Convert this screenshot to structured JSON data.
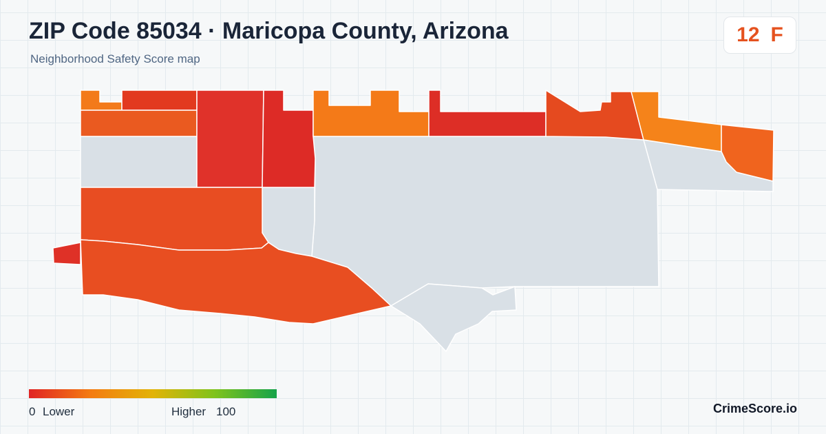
{
  "header": {
    "title": "ZIP Code 85034 · Maricopa County, Arizona",
    "subtitle": "Neighborhood Safety Score map"
  },
  "score": {
    "value": "12",
    "grade": "F",
    "color": "#e5521f"
  },
  "map": {
    "no_data_color": "#d9e0e6",
    "regions": [
      {
        "id": "nw-strip-1",
        "color": "#f37a1a"
      },
      {
        "id": "nw-strip-2",
        "color": "#e2391f"
      },
      {
        "id": "nw-block",
        "color": "#ea5a20"
      },
      {
        "id": "north-block-a",
        "color": "#e0322a"
      },
      {
        "id": "north-block-b",
        "color": "#dd2b26"
      },
      {
        "id": "north-center-left",
        "color": "#f47a18"
      },
      {
        "id": "north-center",
        "color": "#dd2e26"
      },
      {
        "id": "north-center-right",
        "color": "#e54a1f"
      },
      {
        "id": "ne-block",
        "color": "#f5831a"
      },
      {
        "id": "east-block",
        "color": "#f0641e"
      },
      {
        "id": "west-mid-block",
        "color": "#e84d22"
      },
      {
        "id": "sw-large",
        "color": "#e84e21"
      },
      {
        "id": "west-tip",
        "color": "#df3127"
      },
      {
        "id": "nodata-west",
        "color": "#d9e0e6"
      },
      {
        "id": "nodata-center",
        "color": "#d9e0e6"
      },
      {
        "id": "nodata-small",
        "color": "#d9e0e6"
      },
      {
        "id": "nodata-south",
        "color": "#d9e0e6"
      },
      {
        "id": "nodata-east",
        "color": "#d9e0e6"
      }
    ]
  },
  "legend": {
    "low_value": "0",
    "low_label": "Lower",
    "high_label": "Higher",
    "high_value": "100",
    "gradient_colors": [
      "#e02424",
      "#f47c12",
      "#e2b307",
      "#7fc31c",
      "#16a34a"
    ]
  },
  "brand": "CrimeScore.io"
}
